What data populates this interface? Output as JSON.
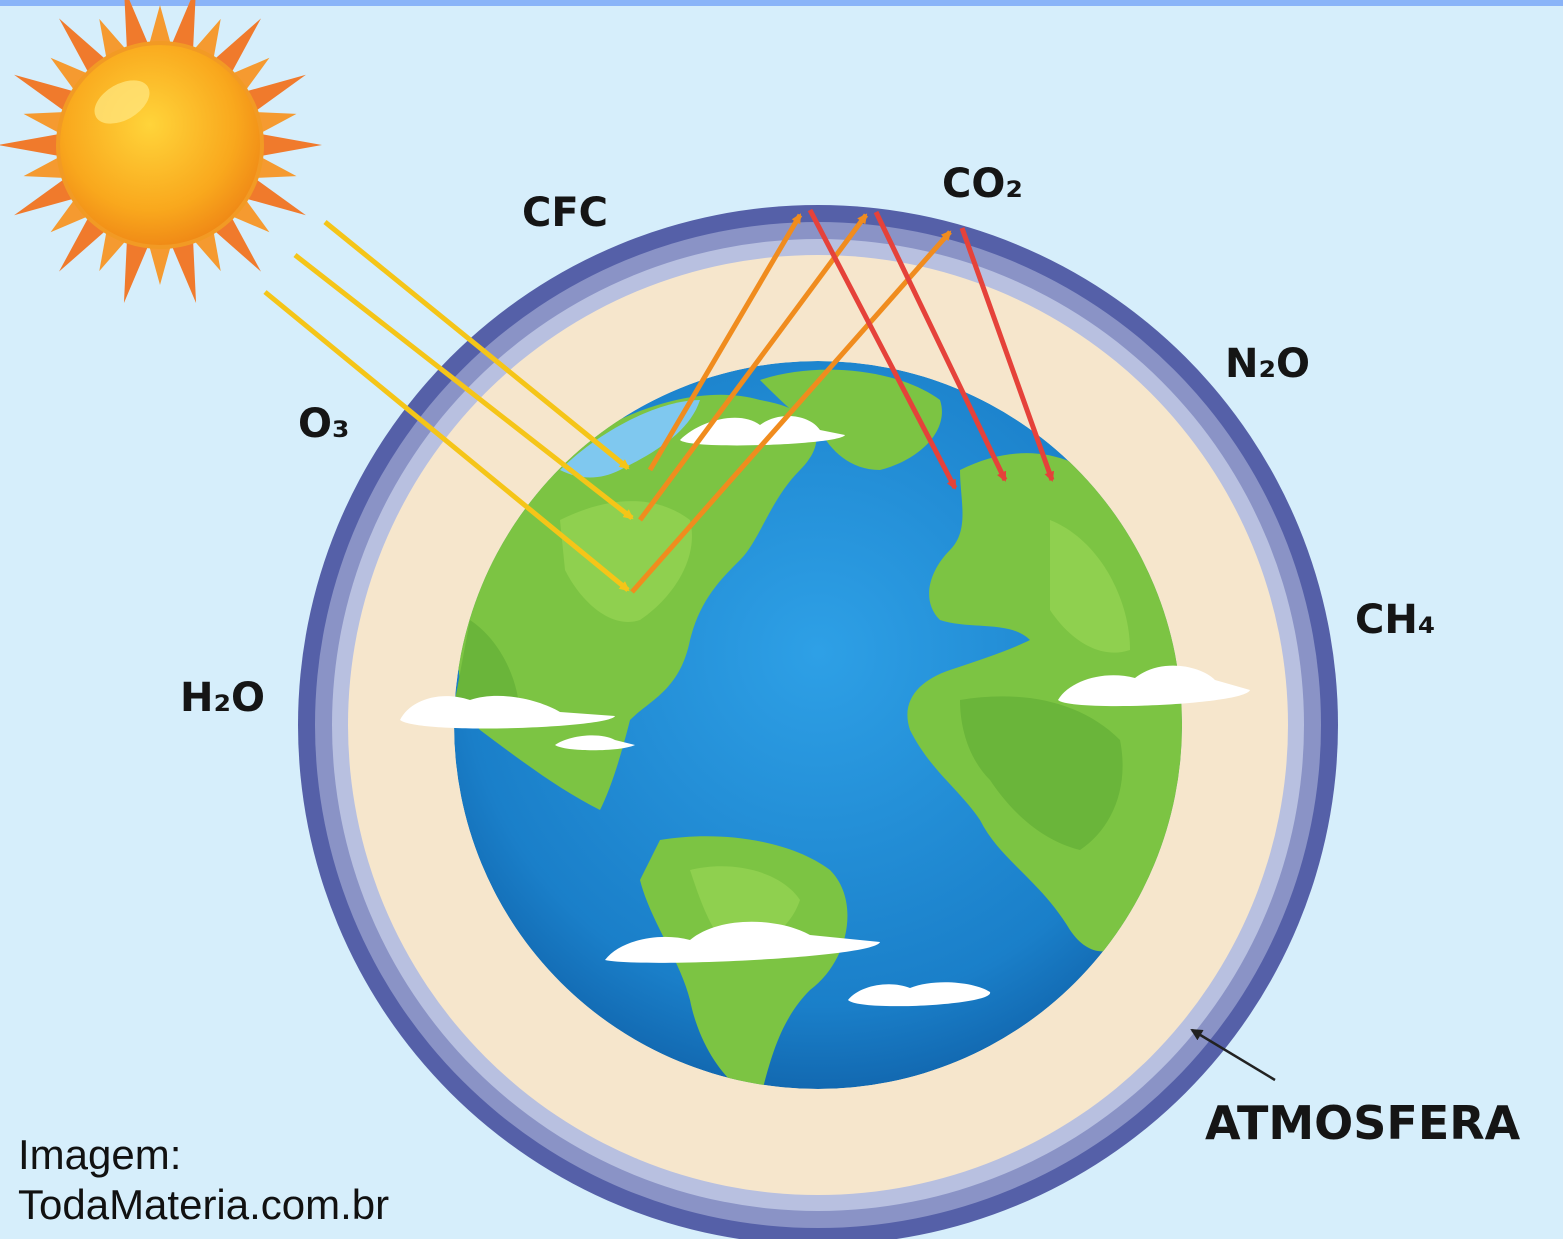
{
  "labels": {
    "cfc": "CFC",
    "co2": "CO₂",
    "n2o": "N₂O",
    "o3": "O₃",
    "ch4": "CH₄",
    "h2o": "H₂O",
    "atmosphere": "ATMOSFERA"
  },
  "credit": {
    "line1": "Imagem:",
    "line2": "TodaMateria.com.br"
  },
  "colors": {
    "background": "#d6eefb",
    "ocean": "#1a86d0",
    "land": "#7cc443",
    "atmosphere_outer": "#5560a8",
    "atmosphere_inner": "#f6e6cc",
    "incoming_ray": "#f5c518",
    "reflected_ray": "#f08c1e",
    "trapped_ray": "#e5423a",
    "sun": "#f7a21b"
  },
  "icons": [
    "sun-icon",
    "earth-icon",
    "cloud-icon"
  ]
}
